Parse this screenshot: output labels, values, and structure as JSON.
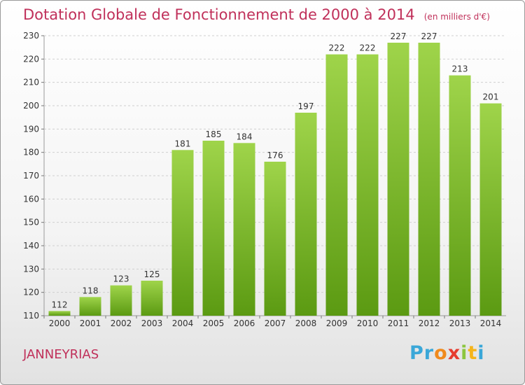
{
  "title": "Dotation Globale de Fonctionnement de 2000 à 2014",
  "subtitle": "(en milliers d'€)",
  "commune": "JANNEYRIAS",
  "logo": {
    "letters": [
      "P",
      "r",
      "o",
      "x",
      "i",
      "t",
      "i"
    ],
    "colors": [
      "#3aa7d8",
      "#3aa7d8",
      "#f08a1c",
      "#e63b2e",
      "#8cc63f",
      "#f5b51b",
      "#3aa7d8"
    ]
  },
  "colors": {
    "title": "#c0305a",
    "bar_light": "#9fd44a",
    "bar_dark": "#5b9a12",
    "grid": "#cfcfcf"
  },
  "chart_data": {
    "type": "bar",
    "title": "Dotation Globale de Fonctionnement de 2000 à 2014",
    "subtitle": "(en milliers d'€)",
    "categories": [
      "2000",
      "2001",
      "2002",
      "2003",
      "2004",
      "2005",
      "2006",
      "2007",
      "2008",
      "2009",
      "2010",
      "2011",
      "2012",
      "2013",
      "2014"
    ],
    "values": [
      112,
      118,
      123,
      125,
      181,
      185,
      184,
      176,
      197,
      222,
      222,
      227,
      227,
      213,
      201
    ],
    "ylim": [
      110,
      230
    ],
    "yticks": [
      110,
      120,
      130,
      140,
      150,
      160,
      170,
      180,
      190,
      200,
      210,
      220,
      230
    ],
    "grid": true,
    "data_labels": true
  }
}
